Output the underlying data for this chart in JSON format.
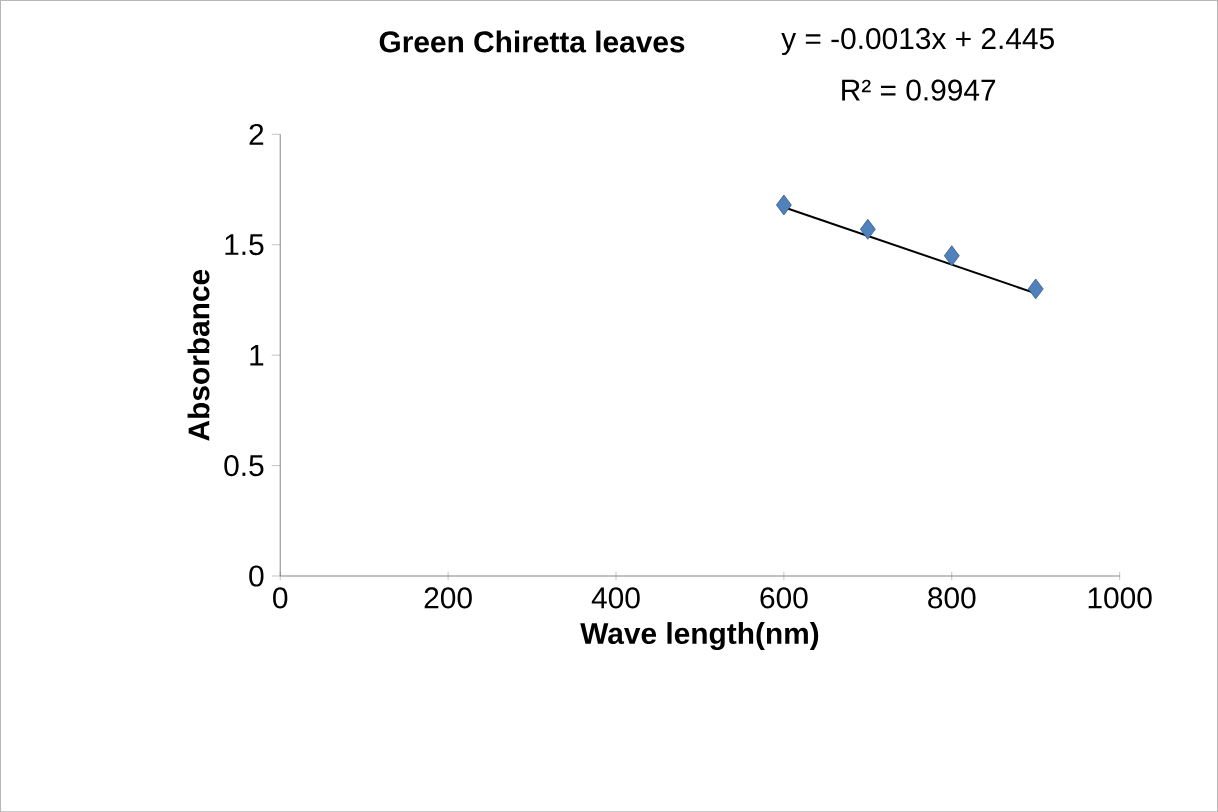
{
  "chart_data": {
    "type": "scatter",
    "title": "Green Chiretta leaves",
    "xlabel": "Wave length(nm)",
    "ylabel": "Absorbance",
    "annotations": [
      "y = -0.0013x + 2.445",
      "R² = 0.9947"
    ],
    "marker": "diamond",
    "series": [
      {
        "color": "#4f81bd",
        "x": [
          600,
          700,
          800,
          900
        ],
        "values": [
          1.68,
          1.57,
          1.45,
          1.3
        ]
      },
      {
        "type": "line",
        "color": "#000000",
        "marker": "none",
        "x": [
          600,
          900
        ],
        "values": [
          1.67,
          1.28
        ]
      }
    ],
    "xlim": [
      0,
      1000
    ],
    "ylim": [
      0,
      2
    ],
    "xticks": [
      0,
      200,
      400,
      600,
      800,
      1000
    ],
    "yticks": [
      0,
      0.5,
      1,
      1.5,
      2
    ]
  }
}
